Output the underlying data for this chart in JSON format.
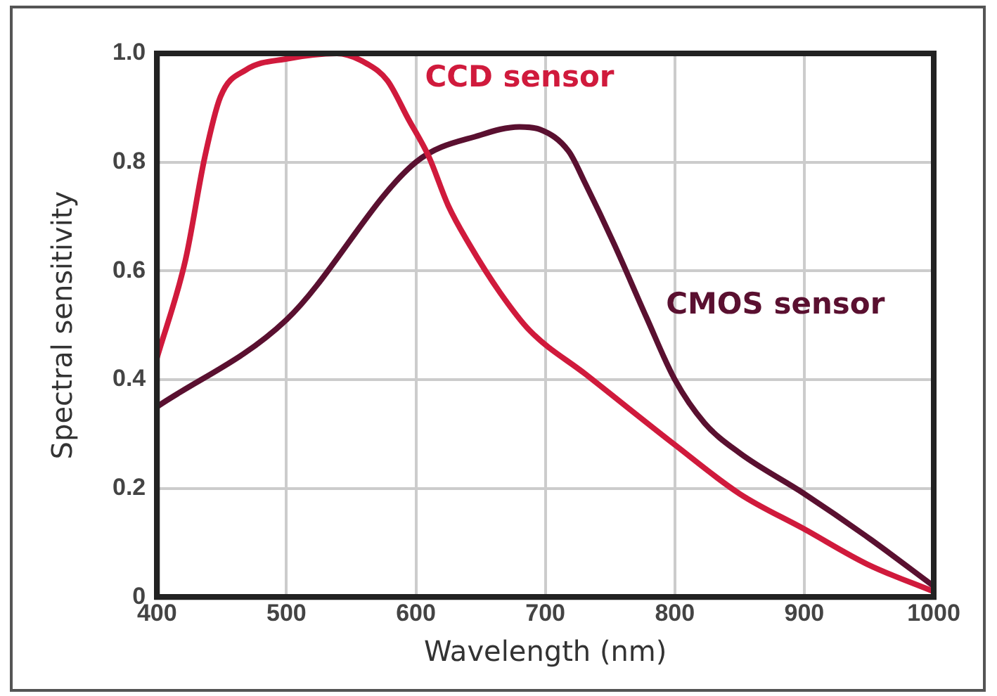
{
  "chart_data": {
    "type": "line",
    "xlabel": "Wavelength (nm)",
    "ylabel": "Spectral sensitivity",
    "xlim": [
      400,
      1000
    ],
    "xticks": [
      400,
      500,
      600,
      700,
      800,
      900,
      1000
    ],
    "ylim": [
      0,
      1.0
    ],
    "yticks": [
      0,
      0.2,
      0.4,
      0.6,
      0.8,
      {
        "value": 1.0,
        "label": "1.0"
      }
    ],
    "grid": true,
    "legend": false,
    "marker": "none",
    "line_style": "solid",
    "series": [
      {
        "name": "CCD sensor",
        "color": "#d01a3c",
        "x": [
          400,
          422,
          437,
          449,
          469,
          500,
          539,
          563,
          578,
          594,
          610,
          625,
          641,
          665,
          688,
          731,
          800,
          850,
          900,
          949,
          1000
        ],
        "values": [
          0.44,
          0.62,
          0.81,
          0.92,
          0.97,
          0.99,
          1.0,
          0.98,
          0.95,
          0.88,
          0.81,
          0.72,
          0.65,
          0.56,
          0.49,
          0.41,
          0.28,
          0.19,
          0.125,
          0.06,
          0.01
        ]
      },
      {
        "name": "CMOS sensor",
        "color": "#5a1030",
        "x": [
          400,
          500,
          600,
          650,
          680,
          696,
          718,
          731,
          753,
          778,
          800,
          823,
          850,
          900,
          949,
          1000
        ],
        "values": [
          0.35,
          0.51,
          0.8,
          0.85,
          0.865,
          0.86,
          0.82,
          0.76,
          0.65,
          0.515,
          0.4,
          0.32,
          0.265,
          0.19,
          0.11,
          0.02
        ]
      }
    ]
  }
}
